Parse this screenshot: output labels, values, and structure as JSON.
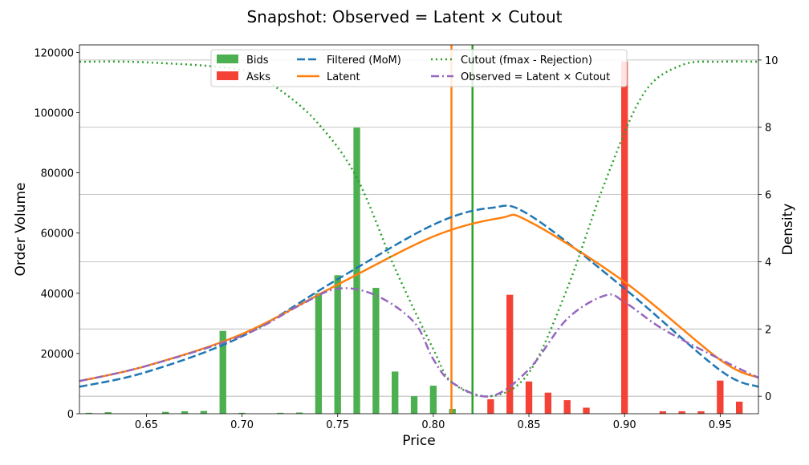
{
  "chart_data": {
    "type": "bar",
    "title": "Snapshot: Observed = Latent × Cutout",
    "xlabel": "Price",
    "ylabel": "Order Volume",
    "y2label": "Density",
    "xlim": [
      0.615,
      0.97
    ],
    "ylim": [
      0,
      122500
    ],
    "y2lim": [
      -0.52,
      10.45
    ],
    "xticks": [
      0.65,
      0.7,
      0.75,
      0.8,
      0.85,
      0.9,
      0.95
    ],
    "xtick_labels": [
      "0.65",
      "0.70",
      "0.75",
      "0.80",
      "0.85",
      "0.90",
      "0.95"
    ],
    "yticks": [
      0,
      20000,
      40000,
      60000,
      80000,
      100000,
      120000
    ],
    "ytick_labels": [
      "0",
      "20000",
      "40000",
      "60000",
      "80000",
      "100000",
      "120000"
    ],
    "y2ticks": [
      0,
      2,
      4,
      6,
      8,
      10
    ],
    "y2tick_labels": [
      "0",
      "2",
      "4",
      "6",
      "8",
      "10"
    ],
    "grid": "horizontal, right axis",
    "legend_position": "top-center",
    "bid_series": {
      "name": "Bids",
      "color": "#4caf50",
      "x": [
        0.62,
        0.63,
        0.66,
        0.67,
        0.68,
        0.69,
        0.7,
        0.72,
        0.73,
        0.74,
        0.75,
        0.76,
        0.77,
        0.78,
        0.79,
        0.8,
        0.81
      ],
      "values": [
        300,
        500,
        600,
        800,
        900,
        27500,
        300,
        300,
        400,
        40000,
        46000,
        95000,
        41800,
        14000,
        5800,
        9300,
        1600
      ]
    },
    "ask_series": {
      "name": "Asks",
      "color": "#f44336",
      "x": [
        0.83,
        0.84,
        0.85,
        0.86,
        0.87,
        0.88,
        0.9,
        0.92,
        0.93,
        0.94,
        0.95,
        0.96
      ],
      "values": [
        4800,
        39500,
        10700,
        7000,
        4500,
        2000,
        117000,
        800,
        800,
        800,
        11000,
        4000
      ]
    },
    "vlines": [
      {
        "x": 0.8095,
        "color": "#ff7f0e"
      },
      {
        "x": 0.8205,
        "color": "#2ca02c"
      }
    ],
    "curves": [
      {
        "name": "Filtered (MoM)",
        "color": "#1f77b4",
        "style": "dashed",
        "x": [
          0.615,
          0.65,
          0.7,
          0.75,
          0.8,
          0.83,
          0.85,
          0.9,
          0.95,
          0.97
        ],
        "y": [
          0.28,
          0.72,
          1.78,
          3.48,
          5.1,
          5.6,
          5.4,
          3.2,
          0.77,
          0.28
        ]
      },
      {
        "name": "Latent",
        "color": "#ff7f0e",
        "style": "solid",
        "x": [
          0.615,
          0.65,
          0.7,
          0.75,
          0.8,
          0.835,
          0.85,
          0.9,
          0.95,
          0.97
        ],
        "y": [
          0.45,
          0.9,
          1.85,
          3.32,
          4.75,
          5.3,
          5.2,
          3.4,
          1.08,
          0.55
        ]
      },
      {
        "name": "Cutout (fmax - Rejection)",
        "color": "#2ca02c",
        "style": "dotted",
        "x": [
          0.615,
          0.65,
          0.7,
          0.72,
          0.74,
          0.76,
          0.78,
          0.8,
          0.81,
          0.83,
          0.85,
          0.87,
          0.89,
          0.91,
          0.93,
          0.95,
          0.97
        ],
        "y": [
          9.95,
          9.93,
          9.7,
          9.1,
          8.1,
          6.5,
          3.8,
          1.4,
          0.4,
          0.0,
          0.7,
          3.2,
          6.4,
          9.0,
          9.85,
          9.95,
          9.95
        ]
      },
      {
        "name": "Observed = Latent × Cutout",
        "color": "#9467bd",
        "style": "dashdot",
        "x": [
          0.615,
          0.65,
          0.7,
          0.73,
          0.75,
          0.77,
          0.79,
          0.8,
          0.81,
          0.83,
          0.85,
          0.87,
          0.89,
          0.9,
          0.92,
          0.95,
          0.97
        ],
        "y": [
          0.45,
          0.9,
          1.8,
          2.7,
          3.2,
          3.0,
          2.2,
          1.1,
          0.4,
          0.0,
          0.8,
          2.3,
          3.0,
          2.8,
          2.0,
          1.1,
          0.55
        ]
      }
    ]
  }
}
